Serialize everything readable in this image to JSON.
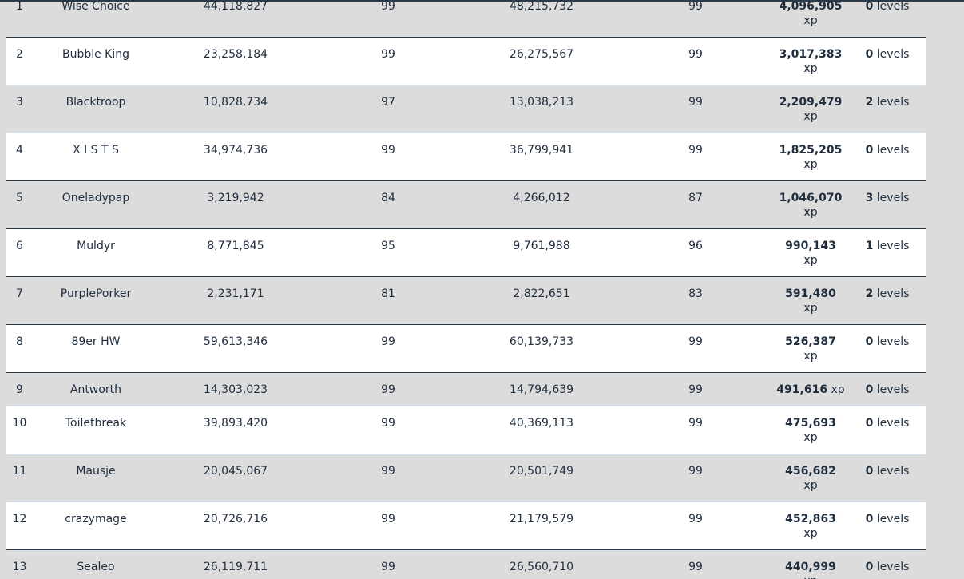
{
  "rows": [
    {
      "rank": "1",
      "name": "Wise Choice",
      "start_xp": "44,118,827",
      "start_level": "99",
      "end_xp": "48,215,732",
      "end_level": "99",
      "gained": "4,096,905",
      "gained_unit": "xp",
      "levels_num": "0",
      "levels_unit": "levels"
    },
    {
      "rank": "2",
      "name": "Bubble King",
      "start_xp": "23,258,184",
      "start_level": "99",
      "end_xp": "26,275,567",
      "end_level": "99",
      "gained": "3,017,383",
      "gained_unit": "xp",
      "levels_num": "0",
      "levels_unit": "levels"
    },
    {
      "rank": "3",
      "name": "Blacktroop",
      "start_xp": "10,828,734",
      "start_level": "97",
      "end_xp": "13,038,213",
      "end_level": "99",
      "gained": "2,209,479",
      "gained_unit": "xp",
      "levels_num": "2",
      "levels_unit": "levels"
    },
    {
      "rank": "4",
      "name": "X I S T S",
      "start_xp": "34,974,736",
      "start_level": "99",
      "end_xp": "36,799,941",
      "end_level": "99",
      "gained": "1,825,205",
      "gained_unit": "xp",
      "levels_num": "0",
      "levels_unit": "levels"
    },
    {
      "rank": "5",
      "name": "Oneladypap",
      "start_xp": "3,219,942",
      "start_level": "84",
      "end_xp": "4,266,012",
      "end_level": "87",
      "gained": "1,046,070",
      "gained_unit": "xp",
      "levels_num": "3",
      "levels_unit": "levels"
    },
    {
      "rank": "6",
      "name": "Muldyr",
      "start_xp": "8,771,845",
      "start_level": "95",
      "end_xp": "9,761,988",
      "end_level": "96",
      "gained": "990,143",
      "gained_unit": "xp",
      "levels_num": "1",
      "levels_unit": "levels"
    },
    {
      "rank": "7",
      "name": "PurplePorker",
      "start_xp": "2,231,171",
      "start_level": "81",
      "end_xp": "2,822,651",
      "end_level": "83",
      "gained": "591,480",
      "gained_unit": "xp",
      "levels_num": "2",
      "levels_unit": "levels"
    },
    {
      "rank": "8",
      "name": "89er HW",
      "start_xp": "59,613,346",
      "start_level": "99",
      "end_xp": "60,139,733",
      "end_level": "99",
      "gained": "526,387",
      "gained_unit": "xp",
      "levels_num": "0",
      "levels_unit": "levels"
    },
    {
      "rank": "9",
      "name": "Antworth",
      "start_xp": "14,303,023",
      "start_level": "99",
      "end_xp": "14,794,639",
      "end_level": "99",
      "gained": "491,616",
      "gained_unit": "xp",
      "levels_num": "0",
      "levels_unit": "levels"
    },
    {
      "rank": "10",
      "name": "Toiletbreak",
      "start_xp": "39,893,420",
      "start_level": "99",
      "end_xp": "40,369,113",
      "end_level": "99",
      "gained": "475,693",
      "gained_unit": "xp",
      "levels_num": "0",
      "levels_unit": "levels"
    },
    {
      "rank": "11",
      "name": "Mausje",
      "start_xp": "20,045,067",
      "start_level": "99",
      "end_xp": "20,501,749",
      "end_level": "99",
      "gained": "456,682",
      "gained_unit": "xp",
      "levels_num": "0",
      "levels_unit": "levels"
    },
    {
      "rank": "12",
      "name": "crazymage",
      "start_xp": "20,726,716",
      "start_level": "99",
      "end_xp": "21,179,579",
      "end_level": "99",
      "gained": "452,863",
      "gained_unit": "xp",
      "levels_num": "0",
      "levels_unit": "levels"
    },
    {
      "rank": "13",
      "name": "Sealeo",
      "start_xp": "26,119,711",
      "start_level": "99",
      "end_xp": "26,560,710",
      "end_level": "99",
      "gained": "440,999",
      "gained_unit": "xp",
      "levels_num": "0",
      "levels_unit": "levels"
    }
  ],
  "colors": {
    "odd_row": "#dcdcdc",
    "even_row": "#ffffff",
    "border": "#2b3a4a",
    "text": "#1f2d3d"
  }
}
